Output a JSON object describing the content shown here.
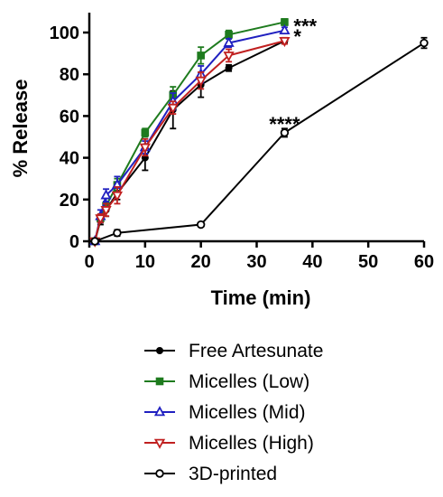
{
  "chart_data": {
    "type": "line",
    "xlabel": "Time (min)",
    "ylabel": "% Release",
    "xlim": [
      0,
      60
    ],
    "ylim": [
      0,
      100
    ],
    "x_ticks": [
      0,
      10,
      20,
      30,
      40,
      50,
      60
    ],
    "y_ticks": [
      0,
      20,
      40,
      60,
      80,
      100
    ],
    "grid": false,
    "legend_position": "bottom",
    "series": [
      {
        "name": "Free Artesunate",
        "color": "#000000",
        "marker": "circle-filled",
        "x": [
          1,
          2,
          3,
          5,
          10,
          15,
          20,
          25,
          35
        ],
        "y": [
          0,
          10,
          15,
          23,
          40,
          63,
          75,
          83,
          96
        ],
        "err": [
          0.5,
          2,
          3,
          3,
          6,
          9,
          6,
          1.5,
          1
        ]
      },
      {
        "name": "Micelles (Low)",
        "color": "#1e7b1e",
        "marker": "square-filled",
        "x": [
          1,
          2,
          3,
          5,
          10,
          15,
          20,
          25,
          35
        ],
        "y": [
          0,
          11,
          17,
          27,
          52,
          70,
          89,
          99,
          105
        ],
        "err": [
          0.5,
          2,
          2,
          3,
          2,
          4,
          4,
          2,
          1.5
        ]
      },
      {
        "name": "Micelles (Mid)",
        "color": "#2020c0",
        "marker": "triangle-up-open",
        "x": [
          1,
          2,
          3,
          5,
          10,
          15,
          20,
          25,
          35
        ],
        "y": [
          0,
          12,
          22,
          27,
          45,
          67,
          80,
          95,
          101
        ],
        "err": [
          0.5,
          3,
          3,
          4,
          3,
          4,
          4,
          2,
          1.5
        ]
      },
      {
        "name": "Micelles (High)",
        "color": "#c02020",
        "marker": "triangle-down-open",
        "x": [
          1,
          2,
          3,
          5,
          10,
          15,
          20,
          25,
          35
        ],
        "y": [
          0,
          11,
          15,
          22,
          45,
          64,
          77,
          89,
          96
        ],
        "err": [
          0.5,
          2,
          3,
          4,
          4,
          3,
          4,
          3,
          1.5
        ]
      },
      {
        "name": "3D-printed",
        "color": "#000000",
        "marker": "circle-open",
        "x": [
          1,
          5,
          20,
          35,
          60
        ],
        "y": [
          0,
          4,
          8,
          52,
          95
        ],
        "err": [
          0.5,
          1.5,
          1,
          2,
          2.5
        ]
      }
    ],
    "annotations": [
      {
        "text": "***",
        "x": 35,
        "y": 105,
        "anchor": "right"
      },
      {
        "text": "*",
        "x": 35,
        "y": 100,
        "anchor": "right"
      },
      {
        "text": "****",
        "x": 35,
        "y": 52,
        "anchor": "above"
      }
    ]
  }
}
